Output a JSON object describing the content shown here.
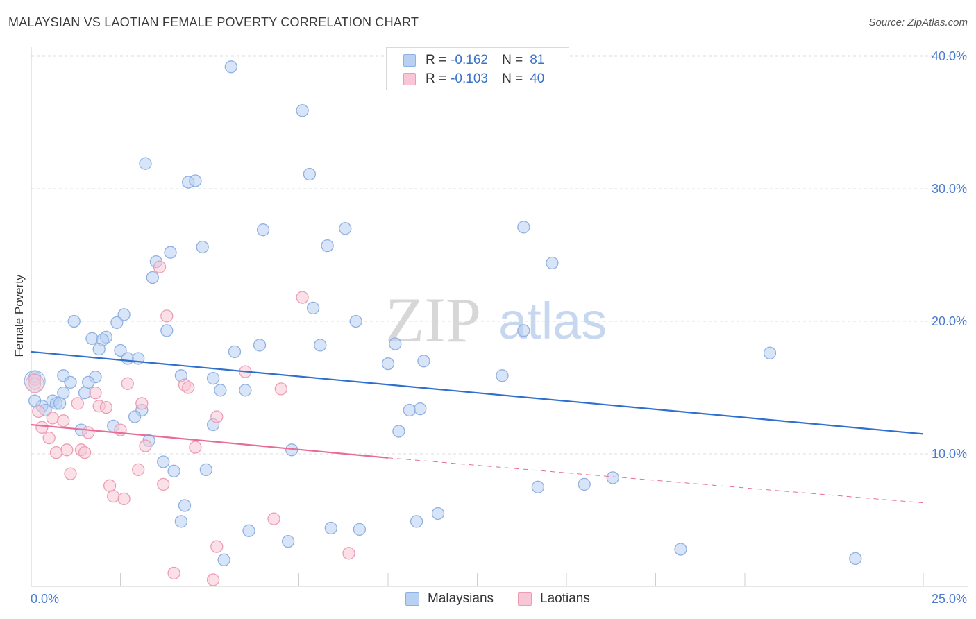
{
  "title": "MALAYSIAN VS LAOTIAN FEMALE POVERTY CORRELATION CHART",
  "source": "Source: ZipAtlas.com",
  "watermark": {
    "part1": "ZIP",
    "part2": "atlas"
  },
  "legend_top": [
    {
      "r_label": "R =",
      "r_value": "-0.162",
      "n_label": "N =",
      "n_value": "81"
    },
    {
      "r_label": "R =",
      "r_value": "-0.103",
      "n_label": "N =",
      "n_value": "40"
    }
  ],
  "legend_bottom": [
    "Malaysians",
    "Laotians"
  ],
  "colors": {
    "malaysian_fill": "#b8d0f2",
    "malaysian_stroke": "#8fb1e2",
    "malaysian_line": "#2f6fce",
    "laotian_fill": "#f8c6d5",
    "laotian_stroke": "#ec9db5",
    "laotian_line": "#e86c96",
    "axis_text": "#4a7bcf",
    "grid": "#dcdcdc"
  },
  "chart_data": {
    "type": "scatter",
    "title": "MALAYSIAN VS LAOTIAN FEMALE POVERTY CORRELATION CHART",
    "xlabel": "",
    "ylabel": "Female Poverty",
    "xlim": [
      0,
      25
    ],
    "ylim": [
      0,
      40
    ],
    "x_tick_labels": [
      "0.0%",
      "25.0%"
    ],
    "y_tick_labels": [
      "10.0%",
      "20.0%",
      "30.0%",
      "40.0%"
    ],
    "y_ticks": [
      10,
      20,
      30,
      40
    ],
    "grid": true,
    "legend_position": "top-center",
    "series": [
      {
        "name": "Malaysians",
        "r": -0.162,
        "n": 81,
        "trend": {
          "x": [
            0,
            25
          ],
          "y": [
            17.7,
            11.5
          ]
        },
        "points": [
          {
            "x": 5.6,
            "y": 39.2
          },
          {
            "x": 7.6,
            "y": 35.9
          },
          {
            "x": 3.2,
            "y": 31.9
          },
          {
            "x": 4.4,
            "y": 30.5
          },
          {
            "x": 4.6,
            "y": 30.6
          },
          {
            "x": 7.8,
            "y": 31.1
          },
          {
            "x": 6.5,
            "y": 26.9
          },
          {
            "x": 8.8,
            "y": 27.0
          },
          {
            "x": 13.8,
            "y": 27.1
          },
          {
            "x": 4.8,
            "y": 25.6
          },
          {
            "x": 3.9,
            "y": 25.2
          },
          {
            "x": 8.3,
            "y": 25.7
          },
          {
            "x": 3.5,
            "y": 24.5
          },
          {
            "x": 14.6,
            "y": 24.4
          },
          {
            "x": 3.4,
            "y": 23.3
          },
          {
            "x": 7.9,
            "y": 21.0
          },
          {
            "x": 2.6,
            "y": 20.5
          },
          {
            "x": 1.2,
            "y": 20.0
          },
          {
            "x": 2.4,
            "y": 19.9
          },
          {
            "x": 3.8,
            "y": 19.3
          },
          {
            "x": 9.1,
            "y": 20.0
          },
          {
            "x": 13.8,
            "y": 19.3
          },
          {
            "x": 1.7,
            "y": 18.7
          },
          {
            "x": 2.1,
            "y": 18.8
          },
          {
            "x": 2.0,
            "y": 18.6
          },
          {
            "x": 6.4,
            "y": 18.2
          },
          {
            "x": 8.1,
            "y": 18.2
          },
          {
            "x": 10.2,
            "y": 18.3
          },
          {
            "x": 1.9,
            "y": 17.9
          },
          {
            "x": 2.5,
            "y": 17.8
          },
          {
            "x": 5.7,
            "y": 17.7
          },
          {
            "x": 2.7,
            "y": 17.2
          },
          {
            "x": 3.0,
            "y": 17.2
          },
          {
            "x": 10.0,
            "y": 16.8
          },
          {
            "x": 11.0,
            "y": 17.0
          },
          {
            "x": 20.7,
            "y": 17.6
          },
          {
            "x": 0.9,
            "y": 15.9
          },
          {
            "x": 1.8,
            "y": 15.8
          },
          {
            "x": 4.2,
            "y": 15.9
          },
          {
            "x": 5.1,
            "y": 15.7
          },
          {
            "x": 13.2,
            "y": 15.9
          },
          {
            "x": 1.1,
            "y": 15.4
          },
          {
            "x": 1.6,
            "y": 15.4
          },
          {
            "x": 0.9,
            "y": 14.6
          },
          {
            "x": 1.5,
            "y": 14.6
          },
          {
            "x": 5.3,
            "y": 14.8
          },
          {
            "x": 6.0,
            "y": 14.8
          },
          {
            "x": 0.6,
            "y": 14.0
          },
          {
            "x": 0.7,
            "y": 13.8
          },
          {
            "x": 0.8,
            "y": 13.8
          },
          {
            "x": 0.3,
            "y": 13.6
          },
          {
            "x": 0.4,
            "y": 13.3
          },
          {
            "x": 3.1,
            "y": 13.3
          },
          {
            "x": 10.6,
            "y": 13.3
          },
          {
            "x": 10.9,
            "y": 13.4
          },
          {
            "x": 2.9,
            "y": 12.8
          },
          {
            "x": 5.1,
            "y": 12.2
          },
          {
            "x": 1.4,
            "y": 11.8
          },
          {
            "x": 2.3,
            "y": 12.1
          },
          {
            "x": 10.3,
            "y": 11.7
          },
          {
            "x": 3.3,
            "y": 11.0
          },
          {
            "x": 7.3,
            "y": 10.3
          },
          {
            "x": 3.7,
            "y": 9.4
          },
          {
            "x": 4.0,
            "y": 8.7
          },
          {
            "x": 4.9,
            "y": 8.8
          },
          {
            "x": 14.2,
            "y": 7.5
          },
          {
            "x": 15.5,
            "y": 7.7
          },
          {
            "x": 16.3,
            "y": 8.2
          },
          {
            "x": 4.3,
            "y": 6.1
          },
          {
            "x": 11.4,
            "y": 5.5
          },
          {
            "x": 4.2,
            "y": 4.9
          },
          {
            "x": 6.1,
            "y": 4.2
          },
          {
            "x": 8.4,
            "y": 4.4
          },
          {
            "x": 9.2,
            "y": 4.3
          },
          {
            "x": 10.8,
            "y": 4.9
          },
          {
            "x": 7.2,
            "y": 3.4
          },
          {
            "x": 18.2,
            "y": 2.8
          },
          {
            "x": 5.4,
            "y": 2.0
          },
          {
            "x": 23.1,
            "y": 2.1
          },
          {
            "x": 0.1,
            "y": 14.0
          },
          {
            "x": 0.1,
            "y": 15.8
          }
        ]
      },
      {
        "name": "Laotians",
        "r": -0.103,
        "n": 40,
        "trend_solid": {
          "x": [
            0,
            10
          ],
          "y": [
            12.2,
            9.7
          ]
        },
        "trend_dashed": {
          "x": [
            10,
            25
          ],
          "y": [
            9.7,
            6.3
          ]
        },
        "points": [
          {
            "x": 3.6,
            "y": 24.1
          },
          {
            "x": 7.6,
            "y": 21.8
          },
          {
            "x": 3.8,
            "y": 20.4
          },
          {
            "x": 6.0,
            "y": 16.2
          },
          {
            "x": 2.7,
            "y": 15.3
          },
          {
            "x": 4.3,
            "y": 15.2
          },
          {
            "x": 4.4,
            "y": 15.0
          },
          {
            "x": 7.0,
            "y": 14.9
          },
          {
            "x": 1.8,
            "y": 14.6
          },
          {
            "x": 3.1,
            "y": 13.8
          },
          {
            "x": 1.3,
            "y": 13.8
          },
          {
            "x": 1.9,
            "y": 13.6
          },
          {
            "x": 2.1,
            "y": 13.5
          },
          {
            "x": 5.2,
            "y": 12.8
          },
          {
            "x": 0.6,
            "y": 12.7
          },
          {
            "x": 0.9,
            "y": 12.5
          },
          {
            "x": 0.3,
            "y": 12.0
          },
          {
            "x": 2.5,
            "y": 11.8
          },
          {
            "x": 1.6,
            "y": 11.6
          },
          {
            "x": 0.5,
            "y": 11.2
          },
          {
            "x": 3.2,
            "y": 10.6
          },
          {
            "x": 4.6,
            "y": 10.5
          },
          {
            "x": 1.0,
            "y": 10.3
          },
          {
            "x": 1.4,
            "y": 10.3
          },
          {
            "x": 0.7,
            "y": 10.1
          },
          {
            "x": 1.5,
            "y": 10.1
          },
          {
            "x": 3.0,
            "y": 8.8
          },
          {
            "x": 1.1,
            "y": 8.5
          },
          {
            "x": 3.7,
            "y": 7.7
          },
          {
            "x": 2.2,
            "y": 7.6
          },
          {
            "x": 2.3,
            "y": 6.8
          },
          {
            "x": 2.6,
            "y": 6.6
          },
          {
            "x": 6.8,
            "y": 5.1
          },
          {
            "x": 5.2,
            "y": 3.0
          },
          {
            "x": 8.9,
            "y": 2.5
          },
          {
            "x": 4.0,
            "y": 1.0
          },
          {
            "x": 5.1,
            "y": 0.5
          },
          {
            "x": 0.2,
            "y": 13.2
          },
          {
            "x": 0.1,
            "y": 15.6
          },
          {
            "x": 0.1,
            "y": 15.3
          }
        ]
      }
    ]
  }
}
